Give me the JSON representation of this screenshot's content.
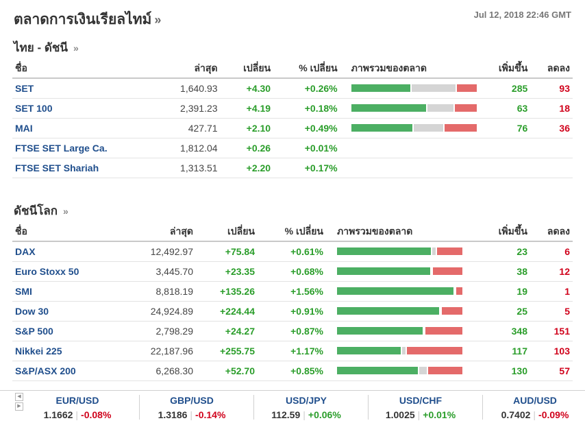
{
  "header": {
    "title": "ตลาดการเงินเรียลไทม์",
    "raquo": "»",
    "timestamp": "Jul 12, 2018 22:46 GMT"
  },
  "thai": {
    "title": "ไทย - ดัชนี",
    "raquo": "»",
    "columns": {
      "name": "ชื่อ",
      "last": "ล่าสุด",
      "change": "เปลี่ยน",
      "pct": "% เปลี่ยน",
      "overview": "ภาพรวมของตลาด",
      "up": "เพิ่มขึ้น",
      "down": "ลดลง"
    },
    "rows": [
      {
        "name": "SET",
        "last": "1,640.93",
        "change": "+4.30",
        "pct": "+0.26%",
        "bar": [
          0.48,
          0.36,
          0.16
        ],
        "up": "285",
        "down": "93"
      },
      {
        "name": "SET 100",
        "last": "2,391.23",
        "change": "+4.19",
        "pct": "+0.18%",
        "bar": [
          0.61,
          0.21,
          0.18
        ],
        "up": "63",
        "down": "18"
      },
      {
        "name": "MAI",
        "last": "427.71",
        "change": "+2.10",
        "pct": "+0.49%",
        "bar": [
          0.5,
          0.24,
          0.26
        ],
        "up": "76",
        "down": "36"
      },
      {
        "name": "FTSE SET Large Ca.",
        "last": "1,812.04",
        "change": "+0.26",
        "pct": "+0.01%",
        "bar": null,
        "up": "",
        "down": ""
      },
      {
        "name": "FTSE SET Shariah",
        "last": "1,313.51",
        "change": "+2.20",
        "pct": "+0.17%",
        "bar": null,
        "up": "",
        "down": ""
      }
    ]
  },
  "world": {
    "title": "ดัชนีโลก",
    "raquo": "»",
    "columns": {
      "name": "ชื่อ",
      "last": "ล่าสุด",
      "change": "เปลี่ยน",
      "pct": "% เปลี่ยน",
      "overview": "ภาพรวมของตลาด",
      "up": "เพิ่มขึ้น",
      "down": "ลดลง"
    },
    "rows": [
      {
        "name": "DAX",
        "last": "12,492.97",
        "change": "+75.84",
        "pct": "+0.61%",
        "bar": [
          0.79,
          0.03,
          0.21
        ],
        "up": "23",
        "down": "6"
      },
      {
        "name": "Euro Stoxx 50",
        "last": "3,445.70",
        "change": "+23.35",
        "pct": "+0.68%",
        "bar": [
          0.76,
          0,
          0.24
        ],
        "up": "38",
        "down": "12"
      },
      {
        "name": "SMI",
        "last": "8,818.19",
        "change": "+135.26",
        "pct": "+1.56%",
        "bar": [
          0.95,
          0,
          0.05
        ],
        "up": "19",
        "down": "1"
      },
      {
        "name": "Dow 30",
        "last": "24,924.89",
        "change": "+224.44",
        "pct": "+0.91%",
        "bar": [
          0.83,
          0,
          0.17
        ],
        "up": "25",
        "down": "5"
      },
      {
        "name": "S&P 500",
        "last": "2,798.29",
        "change": "+24.27",
        "pct": "+0.87%",
        "bar": [
          0.7,
          0,
          0.3
        ],
        "up": "348",
        "down": "151"
      },
      {
        "name": "Nikkei 225",
        "last": "22,187.96",
        "change": "+255.75",
        "pct": "+1.17%",
        "bar": [
          0.52,
          0.03,
          0.45
        ],
        "up": "117",
        "down": "103"
      },
      {
        "name": "S&P/ASX 200",
        "last": "6,268.30",
        "change": "+52.70",
        "pct": "+0.85%",
        "bar": [
          0.66,
          0.06,
          0.28
        ],
        "up": "130",
        "down": "57"
      }
    ]
  },
  "ticker": [
    {
      "pair": "EUR/USD",
      "price": "1.1662",
      "change": "-0.08%",
      "dir": "neg"
    },
    {
      "pair": "GBP/USD",
      "price": "1.3186",
      "change": "-0.14%",
      "dir": "neg"
    },
    {
      "pair": "USD/JPY",
      "price": "112.59",
      "change": "+0.06%",
      "dir": "pos"
    },
    {
      "pair": "USD/CHF",
      "price": "1.0025",
      "change": "+0.01%",
      "dir": "pos"
    },
    {
      "pair": "AUD/USD",
      "price": "0.7402",
      "change": "-0.09%",
      "dir": "neg"
    }
  ],
  "ticker_controls": {
    "prev": "◀",
    "next": "▶"
  }
}
